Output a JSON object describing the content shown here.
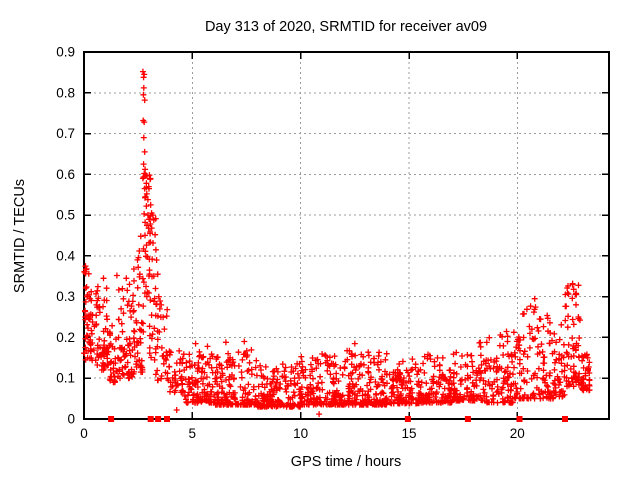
{
  "chart_data": {
    "type": "scatter",
    "title": "Day 313 of 2020, SRMTID for receiver av09",
    "xlabel": "GPS time / hours",
    "ylabel": "SRMTID / TECUs",
    "xlim": [
      0,
      24.23
    ],
    "ylim": [
      0,
      0.9
    ],
    "xticks": [
      0,
      5,
      10,
      15,
      20
    ],
    "xtick_labels": [
      "0",
      "5",
      "10",
      "15",
      "20"
    ],
    "yticks": [
      0,
      0.1,
      0.2,
      0.3,
      0.4,
      0.5,
      0.6,
      0.7,
      0.8,
      0.9
    ],
    "ytick_labels": [
      "0",
      "0.1",
      "0.2",
      "0.3",
      "0.4",
      "0.5",
      "0.6",
      "0.7",
      "0.8",
      "0.9"
    ],
    "grid": true,
    "grid_x": [
      5,
      10,
      15,
      20
    ],
    "grid_y": [
      0.1,
      0.2,
      0.3,
      0.4,
      0.5,
      0.6,
      0.7,
      0.8
    ],
    "legend": "none",
    "marker": "plus",
    "marker_color": "#ff0000",
    "grid_color": "#9c9c9c",
    "axis_color": "#000000",
    "background_color": "#ffffff",
    "series_name": "SRMTID",
    "seed": 313,
    "bands": [
      {
        "x0": 0.0,
        "x1": 0.35,
        "n": 48,
        "ymin": 0.145,
        "ymax": 0.37,
        "skew": 1.3
      },
      {
        "x0": 0.35,
        "x1": 1.1,
        "n": 62,
        "ymin": 0.12,
        "ymax": 0.33,
        "skew": 1.6
      },
      {
        "x0": 1.1,
        "x1": 1.6,
        "n": 36,
        "ymin": 0.09,
        "ymax": 0.23,
        "skew": 1.5
      },
      {
        "x0": 1.6,
        "x1": 2.3,
        "n": 58,
        "ymin": 0.1,
        "ymax": 0.33,
        "skew": 1.9
      },
      {
        "x0": 2.3,
        "x1": 2.75,
        "n": 42,
        "ymin": 0.115,
        "ymax": 0.43,
        "skew": 1.8
      },
      {
        "x0": 2.72,
        "x1": 3.08,
        "n": 30,
        "ymin": 0.3,
        "ymax": 0.62,
        "skew": 1.4
      },
      {
        "x0": 3.02,
        "x1": 3.35,
        "n": 24,
        "ymin": 0.14,
        "ymax": 0.52,
        "skew": 1.5
      },
      {
        "x0": 3.3,
        "x1": 3.95,
        "n": 32,
        "ymin": 0.095,
        "ymax": 0.29,
        "skew": 1.8
      },
      {
        "x0": 3.9,
        "x1": 4.6,
        "n": 38,
        "ymin": 0.065,
        "ymax": 0.18,
        "skew": 1.8
      },
      {
        "x0": 4.6,
        "x1": 6.0,
        "n": 115,
        "ymin": 0.04,
        "ymax": 0.165,
        "skew": 2.4
      },
      {
        "x0": 6.0,
        "x1": 8.0,
        "n": 165,
        "ymin": 0.035,
        "ymax": 0.17,
        "skew": 2.6
      },
      {
        "x0": 8.0,
        "x1": 10.0,
        "n": 165,
        "ymin": 0.03,
        "ymax": 0.14,
        "skew": 2.4
      },
      {
        "x0": 10.0,
        "x1": 12.0,
        "n": 165,
        "ymin": 0.035,
        "ymax": 0.16,
        "skew": 2.5
      },
      {
        "x0": 12.0,
        "x1": 14.0,
        "n": 165,
        "ymin": 0.035,
        "ymax": 0.17,
        "skew": 2.5
      },
      {
        "x0": 14.0,
        "x1": 15.5,
        "n": 125,
        "ymin": 0.038,
        "ymax": 0.15,
        "skew": 2.4
      },
      {
        "x0": 15.5,
        "x1": 17.0,
        "n": 115,
        "ymin": 0.04,
        "ymax": 0.16,
        "skew": 2.3
      },
      {
        "x0": 17.0,
        "x1": 18.5,
        "n": 105,
        "ymin": 0.045,
        "ymax": 0.19,
        "skew": 2.2
      },
      {
        "x0": 18.5,
        "x1": 19.8,
        "n": 92,
        "ymin": 0.04,
        "ymax": 0.215,
        "skew": 2.2
      },
      {
        "x0": 19.8,
        "x1": 21.0,
        "n": 82,
        "ymin": 0.05,
        "ymax": 0.28,
        "skew": 2.0
      },
      {
        "x0": 21.0,
        "x1": 22.2,
        "n": 92,
        "ymin": 0.05,
        "ymax": 0.255,
        "skew": 2.0
      },
      {
        "x0": 22.2,
        "x1": 22.9,
        "n": 64,
        "ymin": 0.08,
        "ymax": 0.33,
        "skew": 1.6
      },
      {
        "x0": 22.9,
        "x1": 23.35,
        "n": 40,
        "ymin": 0.07,
        "ymax": 0.16,
        "skew": 1.8
      }
    ],
    "outlier_points": [
      [
        2.72,
        0.852
      ],
      [
        2.78,
        0.845
      ],
      [
        2.75,
        0.838
      ],
      [
        2.76,
        0.812
      ],
      [
        2.74,
        0.795
      ],
      [
        2.8,
        0.782
      ],
      [
        2.73,
        0.732
      ],
      [
        2.78,
        0.728
      ],
      [
        2.76,
        0.69
      ],
      [
        2.8,
        0.655
      ],
      [
        2.75,
        0.625
      ],
      [
        2.82,
        0.612
      ],
      [
        2.78,
        0.602
      ],
      [
        2.85,
        0.598
      ],
      [
        2.72,
        0.59
      ],
      [
        2.88,
        0.578
      ],
      [
        2.8,
        0.565
      ],
      [
        2.9,
        0.552
      ],
      [
        2.84,
        0.545
      ],
      [
        2.95,
        0.538
      ],
      [
        2.88,
        0.522
      ],
      [
        3.02,
        0.598
      ],
      [
        3.05,
        0.588
      ],
      [
        3.0,
        0.565
      ],
      [
        3.08,
        0.525
      ],
      [
        3.12,
        0.505
      ],
      [
        3.18,
        0.5
      ],
      [
        3.22,
        0.488
      ],
      [
        2.95,
        0.5
      ],
      [
        2.98,
        0.468
      ],
      [
        3.05,
        0.455
      ],
      [
        2.62,
        0.448
      ],
      [
        2.55,
        0.412
      ],
      [
        2.5,
        0.372
      ],
      [
        2.58,
        0.355
      ],
      [
        3.28,
        0.452
      ],
      [
        3.32,
        0.415
      ],
      [
        3.35,
        0.39
      ],
      [
        3.4,
        0.355
      ],
      [
        3.3,
        0.32
      ],
      [
        3.45,
        0.3
      ],
      [
        3.5,
        0.27
      ],
      [
        3.55,
        0.25
      ],
      [
        0.07,
        0.375
      ],
      [
        0.12,
        0.368
      ],
      [
        0.9,
        0.345
      ],
      [
        1.52,
        0.352
      ],
      [
        1.95,
        0.345
      ],
      [
        2.1,
        0.33
      ],
      [
        5.15,
        0.185
      ],
      [
        5.7,
        0.178
      ],
      [
        6.55,
        0.188
      ],
      [
        7.4,
        0.19
      ],
      [
        12.5,
        0.185
      ],
      [
        20.8,
        0.295
      ],
      [
        22.55,
        0.332
      ],
      [
        22.6,
        0.318
      ],
      [
        22.72,
        0.305
      ],
      [
        4.28,
        0.022
      ],
      [
        10.85,
        0.012
      ]
    ],
    "zero_marker_hours": [
      1.25,
      3.08,
      3.42,
      3.83,
      14.95,
      17.72,
      20.1,
      22.2
    ]
  }
}
